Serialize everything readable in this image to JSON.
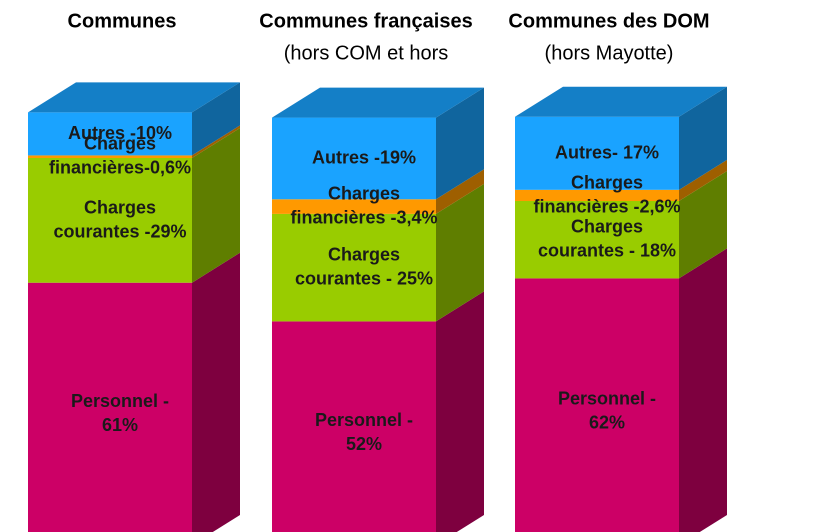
{
  "chart_data": {
    "type": "stacked-bar-3d",
    "categories": [
      "Communes",
      "Communes françaises",
      "Communes des DOM"
    ],
    "subtitles": [
      null,
      "(hors COM et hors",
      "(hors Mayotte)"
    ],
    "series": [
      {
        "color": "#cc0066",
        "values": [
          61,
          52,
          62
        ],
        "value_labels": [
          "Personnel -\n61%",
          "Personnel -\n52%",
          "Personnel -\n62%"
        ]
      },
      {
        "color": "#99cc00",
        "values": [
          29,
          25,
          18
        ],
        "value_labels": [
          "Charges\ncourantes -29%",
          "Charges\ncourantes - 25%",
          "Charges\ncourantes - 18%"
        ]
      },
      {
        "color": "#ff9900",
        "values": [
          0.6,
          3.4,
          2.6
        ],
        "value_labels": [
          "Charges\nfinancières-0,6%",
          "Charges\nfinancières -3,4%",
          "Charges\nfinancières -2,6%"
        ]
      },
      {
        "color": "#1aa3ff",
        "values": [
          10,
          19,
          17
        ],
        "value_labels": [
          "Autres -10%",
          "Autres -19%",
          "Autres- 17%"
        ]
      }
    ]
  }
}
